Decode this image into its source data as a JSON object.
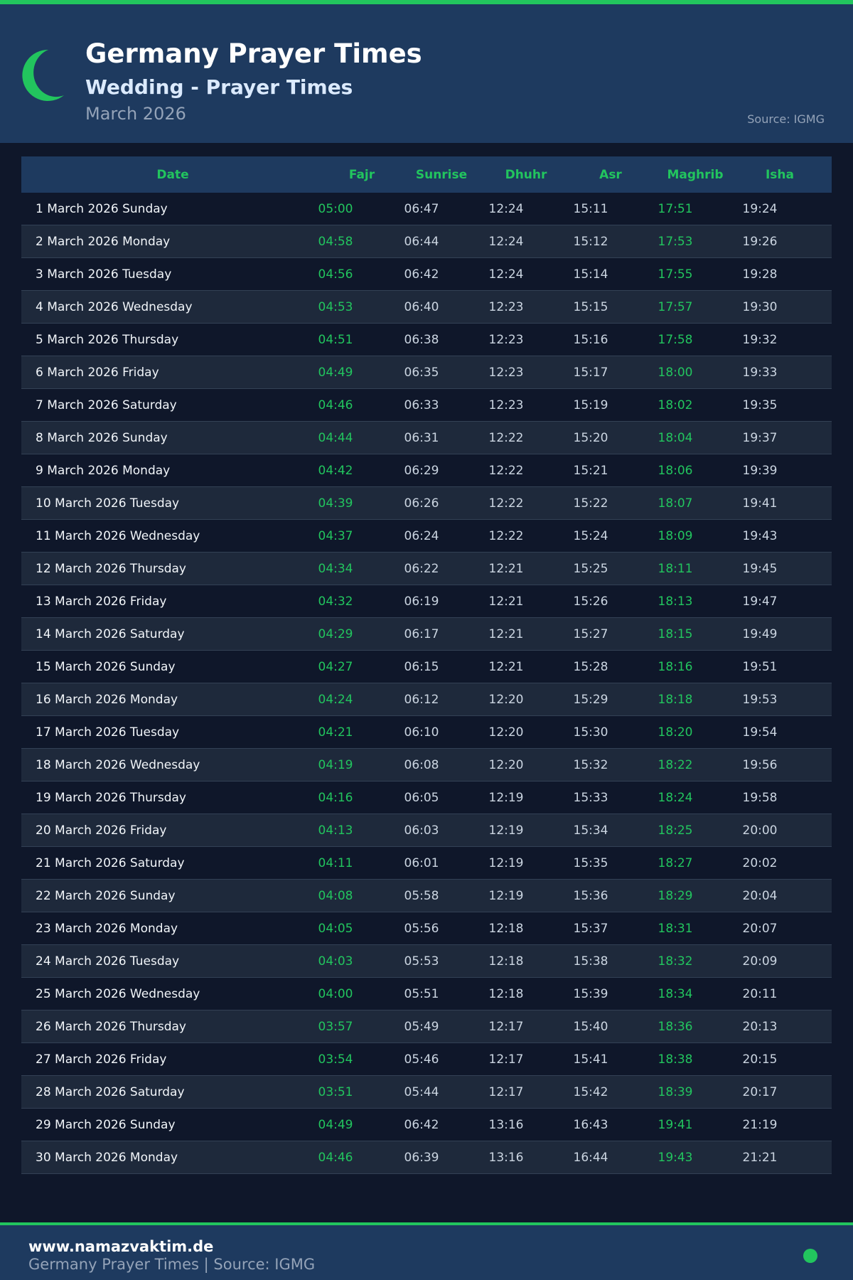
{
  "header": {
    "title": "Germany Prayer Times",
    "subtitle": "Wedding - Prayer Times",
    "month": "March 2026",
    "source": "Source: IGMG"
  },
  "colors": {
    "accent": "#22c55e",
    "header_bg": "#1e3a5f",
    "page_bg": "#0f172a"
  },
  "icons": {
    "logo": "crescent-moon-icon",
    "footer_dot": "status-dot-icon"
  },
  "table": {
    "columns": [
      "Date",
      "Fajr",
      "Sunrise",
      "Dhuhr",
      "Asr",
      "Maghrib",
      "Isha"
    ],
    "rows": [
      [
        "1 March 2026 Sunday",
        "05:00",
        "06:47",
        "12:24",
        "15:11",
        "17:51",
        "19:24"
      ],
      [
        "2 March 2026 Monday",
        "04:58",
        "06:44",
        "12:24",
        "15:12",
        "17:53",
        "19:26"
      ],
      [
        "3 March 2026 Tuesday",
        "04:56",
        "06:42",
        "12:24",
        "15:14",
        "17:55",
        "19:28"
      ],
      [
        "4 March 2026 Wednesday",
        "04:53",
        "06:40",
        "12:23",
        "15:15",
        "17:57",
        "19:30"
      ],
      [
        "5 March 2026 Thursday",
        "04:51",
        "06:38",
        "12:23",
        "15:16",
        "17:58",
        "19:32"
      ],
      [
        "6 March 2026 Friday",
        "04:49",
        "06:35",
        "12:23",
        "15:17",
        "18:00",
        "19:33"
      ],
      [
        "7 March 2026 Saturday",
        "04:46",
        "06:33",
        "12:23",
        "15:19",
        "18:02",
        "19:35"
      ],
      [
        "8 March 2026 Sunday",
        "04:44",
        "06:31",
        "12:22",
        "15:20",
        "18:04",
        "19:37"
      ],
      [
        "9 March 2026 Monday",
        "04:42",
        "06:29",
        "12:22",
        "15:21",
        "18:06",
        "19:39"
      ],
      [
        "10 March 2026 Tuesday",
        "04:39",
        "06:26",
        "12:22",
        "15:22",
        "18:07",
        "19:41"
      ],
      [
        "11 March 2026 Wednesday",
        "04:37",
        "06:24",
        "12:22",
        "15:24",
        "18:09",
        "19:43"
      ],
      [
        "12 March 2026 Thursday",
        "04:34",
        "06:22",
        "12:21",
        "15:25",
        "18:11",
        "19:45"
      ],
      [
        "13 March 2026 Friday",
        "04:32",
        "06:19",
        "12:21",
        "15:26",
        "18:13",
        "19:47"
      ],
      [
        "14 March 2026 Saturday",
        "04:29",
        "06:17",
        "12:21",
        "15:27",
        "18:15",
        "19:49"
      ],
      [
        "15 March 2026 Sunday",
        "04:27",
        "06:15",
        "12:21",
        "15:28",
        "18:16",
        "19:51"
      ],
      [
        "16 March 2026 Monday",
        "04:24",
        "06:12",
        "12:20",
        "15:29",
        "18:18",
        "19:53"
      ],
      [
        "17 March 2026 Tuesday",
        "04:21",
        "06:10",
        "12:20",
        "15:30",
        "18:20",
        "19:54"
      ],
      [
        "18 March 2026 Wednesday",
        "04:19",
        "06:08",
        "12:20",
        "15:32",
        "18:22",
        "19:56"
      ],
      [
        "19 March 2026 Thursday",
        "04:16",
        "06:05",
        "12:19",
        "15:33",
        "18:24",
        "19:58"
      ],
      [
        "20 March 2026 Friday",
        "04:13",
        "06:03",
        "12:19",
        "15:34",
        "18:25",
        "20:00"
      ],
      [
        "21 March 2026 Saturday",
        "04:11",
        "06:01",
        "12:19",
        "15:35",
        "18:27",
        "20:02"
      ],
      [
        "22 March 2026 Sunday",
        "04:08",
        "05:58",
        "12:19",
        "15:36",
        "18:29",
        "20:04"
      ],
      [
        "23 March 2026 Monday",
        "04:05",
        "05:56",
        "12:18",
        "15:37",
        "18:31",
        "20:07"
      ],
      [
        "24 March 2026 Tuesday",
        "04:03",
        "05:53",
        "12:18",
        "15:38",
        "18:32",
        "20:09"
      ],
      [
        "25 March 2026 Wednesday",
        "04:00",
        "05:51",
        "12:18",
        "15:39",
        "18:34",
        "20:11"
      ],
      [
        "26 March 2026 Thursday",
        "03:57",
        "05:49",
        "12:17",
        "15:40",
        "18:36",
        "20:13"
      ],
      [
        "27 March 2026 Friday",
        "03:54",
        "05:46",
        "12:17",
        "15:41",
        "18:38",
        "20:15"
      ],
      [
        "28 March 2026 Saturday",
        "03:51",
        "05:44",
        "12:17",
        "15:42",
        "18:39",
        "20:17"
      ],
      [
        "29 March 2026 Sunday",
        "04:49",
        "06:42",
        "13:16",
        "16:43",
        "19:41",
        "21:19"
      ],
      [
        "30 March 2026 Monday",
        "04:46",
        "06:39",
        "13:16",
        "16:44",
        "19:43",
        "21:21"
      ]
    ]
  },
  "footer": {
    "site": "www.namazvaktim.de",
    "text": "Germany Prayer Times | Source: IGMG"
  }
}
